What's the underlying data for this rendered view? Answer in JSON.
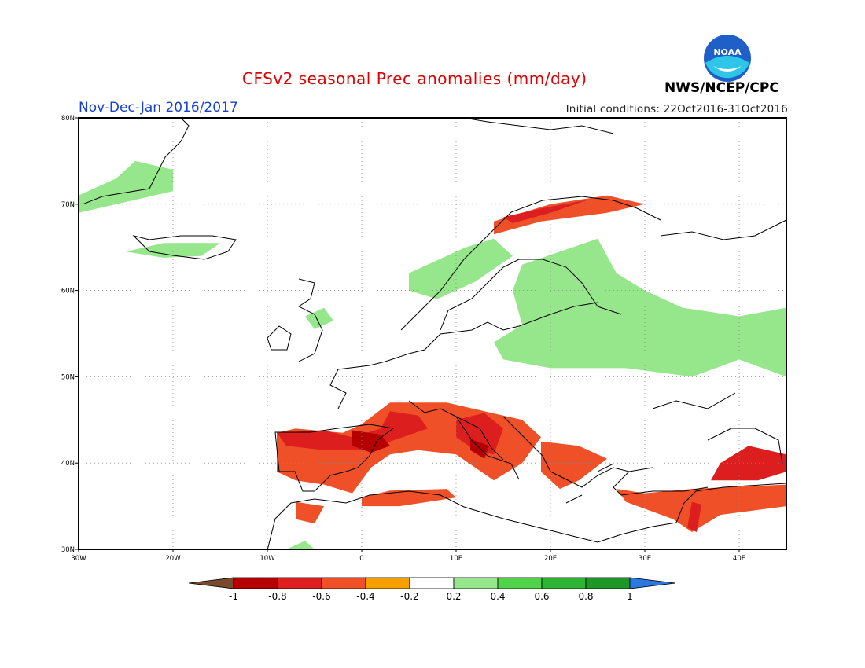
{
  "header": {
    "title": "CFSv2 seasonal Prec anomalies (mm/day)",
    "period": "Nov-Dec-Jan 2016/2017",
    "initial_conditions": "Initial conditions: 22Oct2016-31Oct2016",
    "org": "NWS/NCEP/CPC",
    "logo_text": "NOAA"
  },
  "map": {
    "lon_range": [
      -30,
      45
    ],
    "lat_range": [
      30,
      80
    ],
    "lon_ticks": [
      {
        "value": -30,
        "label": "30W"
      },
      {
        "value": -20,
        "label": "20W"
      },
      {
        "value": -10,
        "label": "10W"
      },
      {
        "value": 0,
        "label": "0"
      },
      {
        "value": 10,
        "label": "10E"
      },
      {
        "value": 20,
        "label": "20E"
      },
      {
        "value": 30,
        "label": "30E"
      },
      {
        "value": 40,
        "label": "40E"
      }
    ],
    "lat_ticks": [
      {
        "value": 30,
        "label": "30N"
      },
      {
        "value": 40,
        "label": "40N"
      },
      {
        "value": 50,
        "label": "50N"
      },
      {
        "value": 60,
        "label": "60N"
      },
      {
        "value": 70,
        "label": "70N"
      },
      {
        "value": 80,
        "label": "80N"
      }
    ],
    "grid": true,
    "anomaly_regions": [
      {
        "category": "-0.4",
        "points": [
          [
            -9,
            43.5
          ],
          [
            -7,
            44
          ],
          [
            -2,
            43.5
          ],
          [
            0,
            44.5
          ],
          [
            3,
            47
          ],
          [
            9,
            47
          ],
          [
            13,
            46
          ],
          [
            17,
            45
          ],
          [
            19,
            43
          ],
          [
            17,
            40
          ],
          [
            14,
            38
          ],
          [
            10,
            41
          ],
          [
            6,
            41.5
          ],
          [
            3,
            41
          ],
          [
            1,
            39.5
          ],
          [
            -1,
            36.5
          ],
          [
            -4,
            37.5
          ],
          [
            -7,
            38
          ],
          [
            -9,
            39
          ]
        ]
      },
      {
        "category": "-0.6",
        "points": [
          [
            -9,
            43.5
          ],
          [
            -4,
            43.8
          ],
          [
            -1,
            43
          ],
          [
            2,
            44
          ],
          [
            3,
            46
          ],
          [
            6,
            45.5
          ],
          [
            7,
            44
          ],
          [
            3,
            42.5
          ],
          [
            0,
            41.5
          ],
          [
            -4,
            41.5
          ],
          [
            -8,
            42
          ]
        ]
      },
      {
        "category": "-0.6",
        "points": [
          [
            10,
            45
          ],
          [
            13,
            45.8
          ],
          [
            15,
            44
          ],
          [
            14,
            41
          ],
          [
            12,
            41.5
          ],
          [
            10,
            43
          ]
        ]
      },
      {
        "category": "-0.8",
        "points": [
          [
            -1,
            43.8
          ],
          [
            2,
            43.3
          ],
          [
            3,
            42
          ],
          [
            1,
            41.2
          ],
          [
            -1,
            42
          ]
        ]
      },
      {
        "category": "-0.8",
        "points": [
          [
            11.5,
            42.8
          ],
          [
            13.5,
            42
          ],
          [
            13,
            40.5
          ],
          [
            11.5,
            41.5
          ]
        ]
      },
      {
        "category": "-0.4",
        "points": [
          [
            19,
            42.5
          ],
          [
            23,
            42
          ],
          [
            26,
            40.5
          ],
          [
            23,
            38
          ],
          [
            21,
            37
          ],
          [
            19,
            39
          ]
        ]
      },
      {
        "category": "-0.4",
        "points": [
          [
            27,
            37
          ],
          [
            30,
            36.5
          ],
          [
            35,
            37
          ],
          [
            45,
            37.5
          ],
          [
            45,
            35
          ],
          [
            38,
            34
          ],
          [
            35,
            32
          ],
          [
            33,
            33.5
          ],
          [
            28,
            35.5
          ]
        ]
      },
      {
        "category": "-0.6",
        "points": [
          [
            35,
            35.5
          ],
          [
            36,
            35.2
          ],
          [
            35.5,
            32
          ],
          [
            34.5,
            32.5
          ]
        ]
      },
      {
        "category": "-0.6",
        "points": [
          [
            37,
            38
          ],
          [
            42,
            38
          ],
          [
            45,
            39
          ],
          [
            45,
            41
          ],
          [
            41,
            42
          ],
          [
            38,
            40
          ]
        ]
      },
      {
        "category": "-0.4",
        "points": [
          [
            0,
            36
          ],
          [
            3,
            36.8
          ],
          [
            9,
            37
          ],
          [
            10,
            36
          ],
          [
            4,
            35
          ],
          [
            0,
            35
          ]
        ]
      },
      {
        "category": "-0.4",
        "points": [
          [
            -7,
            35.5
          ],
          [
            -4,
            35
          ],
          [
            -5,
            33
          ],
          [
            -7,
            33.5
          ]
        ]
      },
      {
        "category": "-0.4",
        "points": [
          [
            14,
            68
          ],
          [
            20,
            70
          ],
          [
            26,
            71
          ],
          [
            30,
            70
          ],
          [
            26,
            69
          ],
          [
            19,
            68
          ],
          [
            14,
            66.5
          ]
        ]
      },
      {
        "category": "-0.6",
        "points": [
          [
            15,
            68.5
          ],
          [
            19,
            69.5
          ],
          [
            24,
            70.5
          ],
          [
            20,
            69
          ],
          [
            16,
            67.8
          ]
        ]
      },
      {
        "category": "0.4",
        "points": [
          [
            17,
            63
          ],
          [
            25,
            66
          ],
          [
            27,
            62
          ],
          [
            30,
            60
          ],
          [
            34,
            58
          ],
          [
            40,
            57
          ],
          [
            45,
            58
          ],
          [
            45,
            50
          ],
          [
            40,
            52
          ],
          [
            35,
            50
          ],
          [
            28,
            51
          ],
          [
            20,
            51
          ],
          [
            15,
            52
          ],
          [
            14,
            54
          ],
          [
            17,
            56
          ],
          [
            16,
            60
          ]
        ]
      },
      {
        "category": "0.4",
        "points": [
          [
            5,
            62
          ],
          [
            11,
            65
          ],
          [
            14,
            66
          ],
          [
            16,
            64
          ],
          [
            12,
            61
          ],
          [
            8,
            59
          ],
          [
            5,
            60
          ]
        ]
      },
      {
        "category": "0.4",
        "points": [
          [
            -25,
            64.5
          ],
          [
            -21,
            65.5
          ],
          [
            -15,
            65.5
          ],
          [
            -17,
            64
          ],
          [
            -21,
            63.8
          ]
        ]
      },
      {
        "category": "0.4",
        "points": [
          [
            -30,
            69
          ],
          [
            -26,
            70
          ],
          [
            -20,
            71.5
          ],
          [
            -20,
            74
          ],
          [
            -24,
            75
          ],
          [
            -26,
            73
          ],
          [
            -30,
            71
          ]
        ]
      },
      {
        "category": "0.4",
        "points": [
          [
            -6,
            57
          ],
          [
            -4,
            58
          ],
          [
            -3,
            56.5
          ],
          [
            -5,
            55.5
          ]
        ]
      },
      {
        "category": "0.4",
        "points": [
          [
            -8,
            30
          ],
          [
            -6,
            31
          ],
          [
            -5,
            30
          ]
        ]
      }
    ],
    "colorbar": {
      "labels": [
        "-1",
        "-0.8",
        "-0.6",
        "-0.4",
        "-0.2",
        "0.2",
        "0.4",
        "0.6",
        "0.8",
        "1"
      ],
      "colors": [
        "#7a4a2e",
        "#b40000",
        "#dc1e1e",
        "#f05028",
        "#f5a000",
        "#ffffff",
        "#96e68c",
        "#50d24b",
        "#2db432",
        "#1e9628",
        "#2b78e0"
      ]
    }
  }
}
